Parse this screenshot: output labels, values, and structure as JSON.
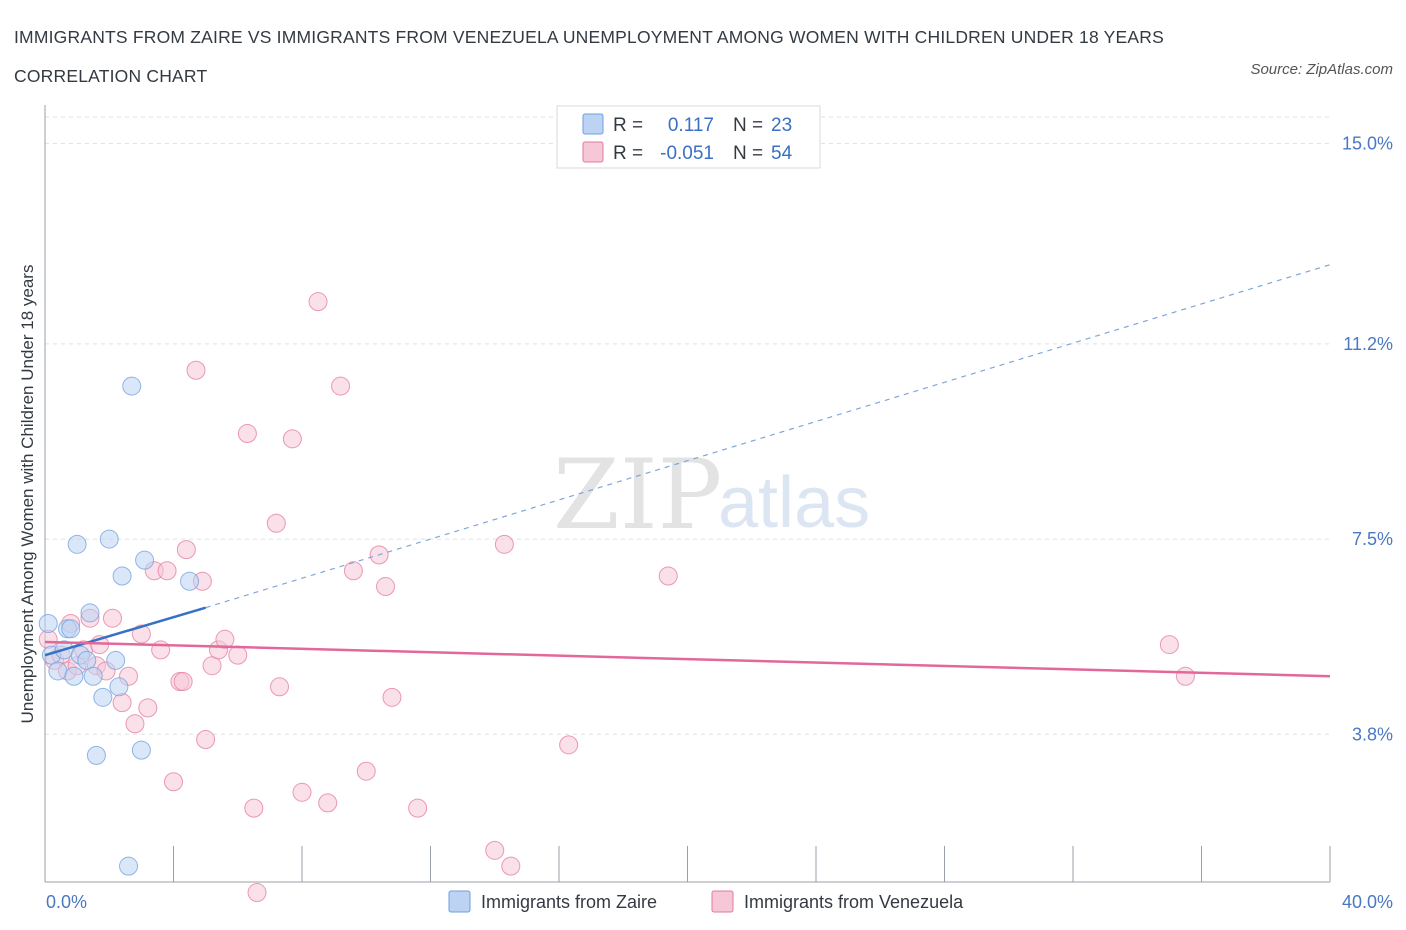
{
  "title": "IMMIGRANTS FROM ZAIRE VS IMMIGRANTS FROM VENEZUELA UNEMPLOYMENT AMONG WOMEN WITH CHILDREN UNDER 18 YEARS CORRELATION CHART",
  "source": "Source: ZipAtlas.com",
  "watermark": {
    "zip": "ZIP",
    "atlas": "atlas"
  },
  "colors": {
    "zaire": "#6f9fde",
    "zaire_fill": "#bcd3f4",
    "venezuela": "#e6799e",
    "venezuela_fill": "#f6c7d6",
    "axis_text": "#4a78c2",
    "grid": "#dde1e6"
  },
  "chart_data": {
    "type": "scatter",
    "title": "IMMIGRANTS FROM ZAIRE VS IMMIGRANTS FROM VENEZUELA UNEMPLOYMENT AMONG WOMEN WITH CHILDREN UNDER 18 YEARS CORRELATION CHART",
    "xlabel": "",
    "ylabel": "Unemployment Among Women with Children Under 18 years",
    "xlim": [
      0,
      40
    ],
    "ylim": [
      1.0,
      15.5
    ],
    "x_tick_labels": [
      "0.0%",
      "40.0%"
    ],
    "y_ticks": [
      3.8,
      7.5,
      11.2,
      15.0
    ],
    "y_tick_labels": [
      "3.8%",
      "7.5%",
      "11.2%",
      "15.0%"
    ],
    "grid": true,
    "legend": [
      {
        "key": "zaire",
        "r_label": "R =",
        "r_value": "0.117",
        "n_label": "N =",
        "n_value": "23"
      },
      {
        "key": "venezuela",
        "r_label": "R =",
        "r_value": "-0.051",
        "n_label": "N =",
        "n_value": "54"
      }
    ],
    "series": [
      {
        "name": "Immigrants from Zaire",
        "key": "zaire",
        "points": [
          [
            0.1,
            5.9
          ],
          [
            0.2,
            5.3
          ],
          [
            0.4,
            5.0
          ],
          [
            0.6,
            5.4
          ],
          [
            0.7,
            5.8
          ],
          [
            0.8,
            5.8
          ],
          [
            0.9,
            4.9
          ],
          [
            1.0,
            7.4
          ],
          [
            1.1,
            5.3
          ],
          [
            1.3,
            5.2
          ],
          [
            1.4,
            6.1
          ],
          [
            1.5,
            4.9
          ],
          [
            1.6,
            3.4
          ],
          [
            1.8,
            4.5
          ],
          [
            2.0,
            7.5
          ],
          [
            2.2,
            5.2
          ],
          [
            2.3,
            4.7
          ],
          [
            2.4,
            6.8
          ],
          [
            2.6,
            1.3
          ],
          [
            2.7,
            10.4
          ],
          [
            3.0,
            3.5
          ],
          [
            3.1,
            7.1
          ],
          [
            4.5,
            6.7
          ]
        ],
        "trend": {
          "x0": 0,
          "y0": 5.3,
          "x1": 5.0,
          "y1": 6.2,
          "dash_x1": 40,
          "dash_y1": 12.7
        }
      },
      {
        "name": "Immigrants from Venezuela",
        "key": "venezuela",
        "points": [
          [
            0.1,
            5.6
          ],
          [
            0.3,
            5.2
          ],
          [
            0.5,
            5.3
          ],
          [
            0.7,
            5.0
          ],
          [
            0.8,
            5.9
          ],
          [
            1.0,
            5.1
          ],
          [
            1.2,
            5.4
          ],
          [
            1.4,
            6.0
          ],
          [
            1.6,
            5.1
          ],
          [
            1.7,
            5.5
          ],
          [
            1.9,
            5.0
          ],
          [
            2.1,
            6.0
          ],
          [
            2.4,
            4.4
          ],
          [
            2.6,
            4.9
          ],
          [
            2.8,
            4.0
          ],
          [
            3.0,
            5.7
          ],
          [
            3.2,
            4.3
          ],
          [
            3.4,
            6.9
          ],
          [
            3.6,
            5.4
          ],
          [
            3.8,
            6.9
          ],
          [
            4.0,
            2.9
          ],
          [
            4.2,
            4.8
          ],
          [
            4.3,
            4.8
          ],
          [
            4.4,
            7.3
          ],
          [
            4.7,
            10.7
          ],
          [
            4.9,
            6.7
          ],
          [
            5.0,
            3.7
          ],
          [
            5.2,
            5.1
          ],
          [
            5.4,
            5.4
          ],
          [
            5.6,
            5.6
          ],
          [
            6.0,
            5.3
          ],
          [
            6.3,
            9.5
          ],
          [
            6.5,
            2.4
          ],
          [
            6.6,
            0.8
          ],
          [
            7.2,
            7.8
          ],
          [
            7.3,
            4.7
          ],
          [
            7.7,
            9.4
          ],
          [
            8.0,
            2.7
          ],
          [
            8.5,
            12.0
          ],
          [
            8.8,
            2.5
          ],
          [
            9.2,
            10.4
          ],
          [
            9.6,
            6.9
          ],
          [
            10.0,
            3.1
          ],
          [
            10.4,
            7.2
          ],
          [
            10.6,
            6.6
          ],
          [
            10.8,
            4.5
          ],
          [
            11.6,
            2.4
          ],
          [
            14.0,
            1.6
          ],
          [
            14.3,
            7.4
          ],
          [
            14.5,
            1.3
          ],
          [
            16.3,
            3.6
          ],
          [
            19.4,
            6.8
          ],
          [
            35.0,
            5.5
          ],
          [
            35.5,
            4.9
          ]
        ],
        "trend": {
          "x0": 0,
          "y0": 5.55,
          "x1": 40,
          "y1": 4.9
        }
      }
    ]
  },
  "bottom_legend": {
    "zaire": "Immigrants from Zaire",
    "venezuela": "Immigrants from Venezuela"
  }
}
